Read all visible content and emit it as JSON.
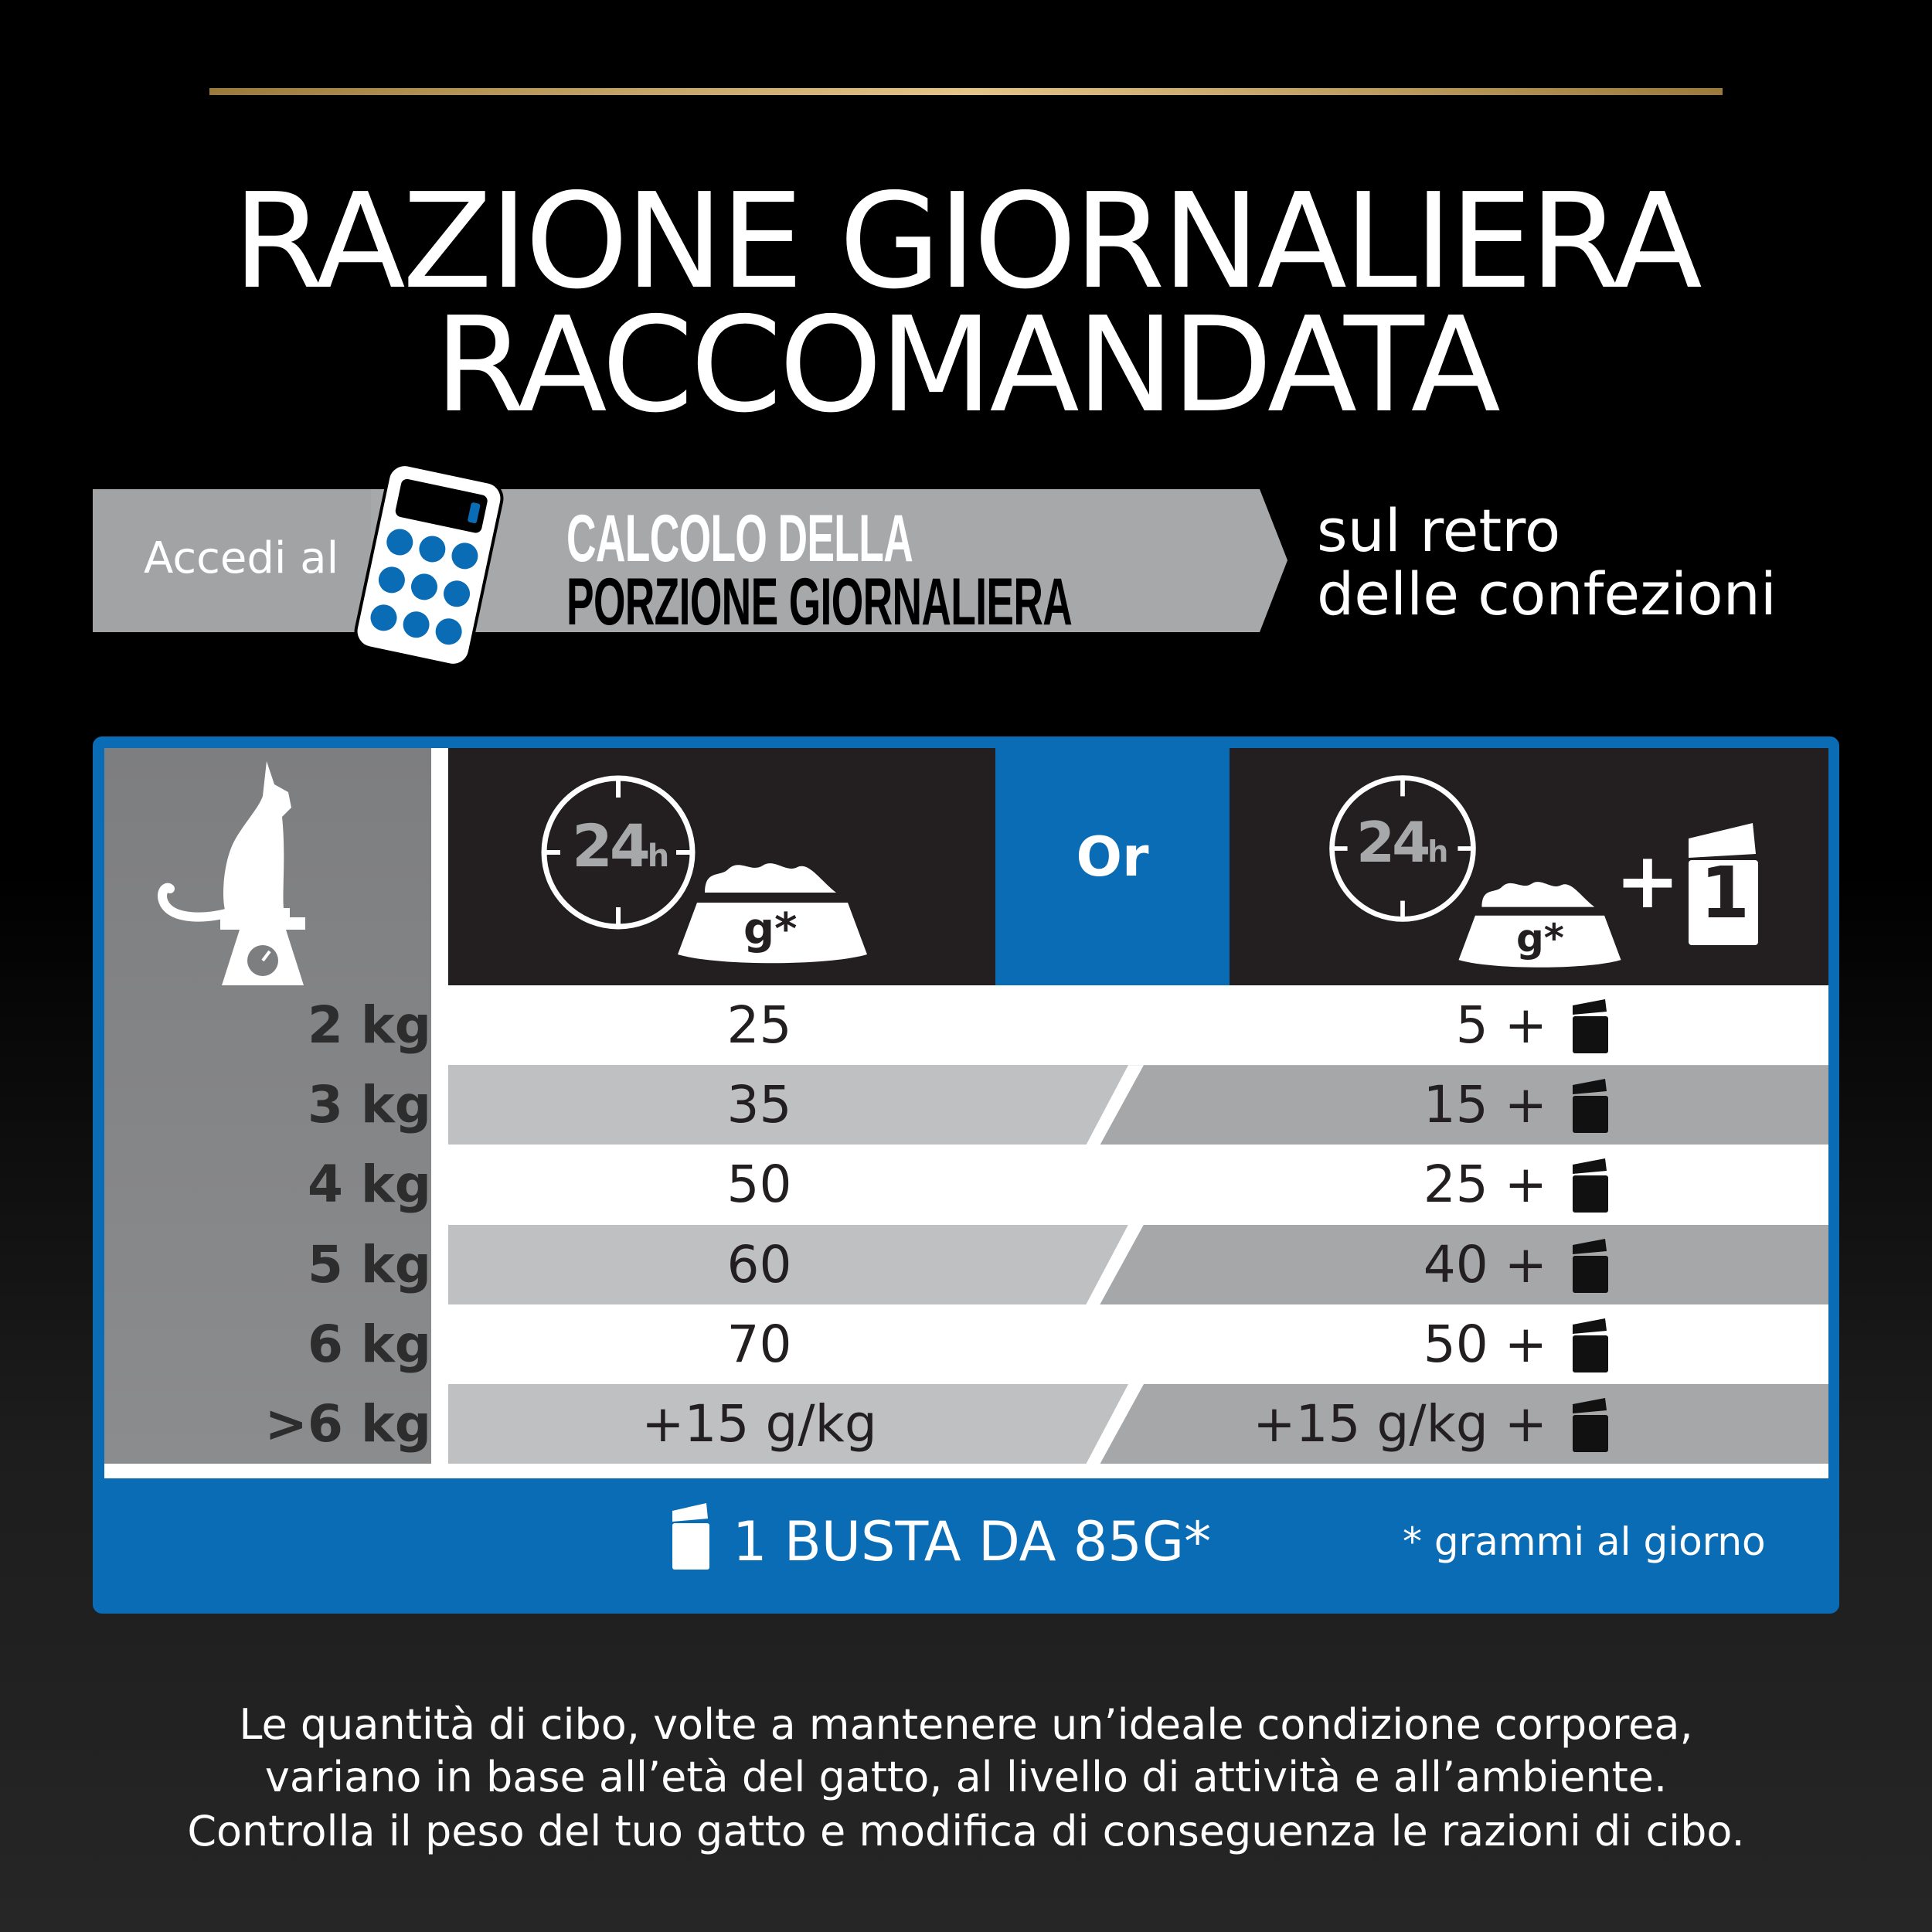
{
  "title": {
    "line1": "RAZIONE GIORNALIERA",
    "line2": "RACCOMANDATA"
  },
  "banner": {
    "access": "Accedi al",
    "calc_line1": "CALCOLO DELLA",
    "calc_line2": "PORZIONE GIORNALIERA",
    "side_line1": "sul retro",
    "side_line2": "delle confezioni"
  },
  "table": {
    "col1_icon_text": "24",
    "col1_icon_unit": "h",
    "bowl_label": "g*",
    "or_label": "Or",
    "col2_icon_text": "24",
    "col2_icon_unit": "h",
    "col2_plus": "+",
    "pouch_number": "1",
    "rows": [
      {
        "weight": "2 kg",
        "dry": "25",
        "mixed": "5 +"
      },
      {
        "weight": "3 kg",
        "dry": "35",
        "mixed": "15 +"
      },
      {
        "weight": "4 kg",
        "dry": "50",
        "mixed": "25 +"
      },
      {
        "weight": "5 kg",
        "dry": "60",
        "mixed": "40 +"
      },
      {
        "weight": "6 kg",
        "dry": "70",
        "mixed": "50 +"
      },
      {
        "weight": ">6  kg",
        "dry": "+15 g/kg",
        "mixed": "+15 g/kg +"
      }
    ],
    "footer_pouch": "1 BUSTA DA 85G*",
    "footnote": "* grammi al giorno"
  },
  "disclaimer": [
    "Le quantità di cibo, volte a mantenere un’ideale condizione corporea,",
    "variano in base all’età del gatto, al livello di attività e all’ambiente.",
    "Controlla il peso del tuo gatto e modifica di conseguenza le razioni di cibo."
  ],
  "colors": {
    "blue": "#0a6cb5",
    "gold": "#d4b06a",
    "gray_light": "#bfc0c2",
    "gray_dark": "#a6a7a9",
    "header_black": "#231f20"
  }
}
